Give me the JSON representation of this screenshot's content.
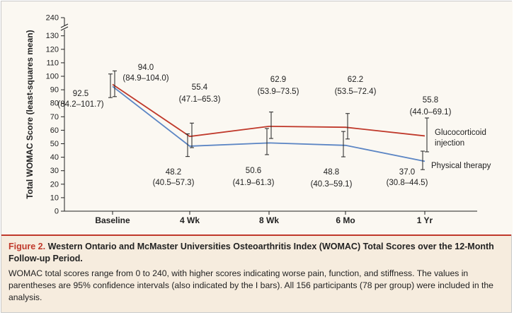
{
  "chart_data": {
    "type": "line",
    "ylabel": "Total WOMAC Score (least-squares mean)",
    "xlabel": "",
    "categories": [
      "Baseline",
      "4 Wk",
      "8 Wk",
      "6 Mo",
      "1 Yr"
    ],
    "y_ticks": [
      0,
      10,
      20,
      30,
      40,
      50,
      60,
      70,
      80,
      90,
      100,
      110,
      120,
      130
    ],
    "y_break_label": 240,
    "ylim": [
      0,
      130
    ],
    "grid": false,
    "series": [
      {
        "name": "Glucocorticoid injection",
        "color": "#c0392b",
        "values": [
          94.0,
          55.4,
          62.9,
          62.2,
          55.8
        ],
        "ci_low": [
          84.9,
          47.1,
          53.9,
          53.5,
          44.0
        ],
        "ci_high": [
          104.0,
          65.3,
          73.5,
          72.4,
          69.1
        ],
        "value_labels": [
          "94.0",
          "55.4",
          "62.9",
          "62.2",
          "55.8"
        ],
        "ci_labels": [
          "(84.9–104.0)",
          "(47.1–65.3)",
          "(53.9–73.5)",
          "(53.5–72.4)",
          "(44.0–69.1)"
        ]
      },
      {
        "name": "Physical therapy",
        "color": "#5b85c4",
        "values": [
          92.5,
          48.2,
          50.6,
          48.8,
          37.0
        ],
        "ci_low": [
          84.2,
          40.5,
          41.9,
          40.3,
          30.8
        ],
        "ci_high": [
          101.7,
          57.3,
          61.3,
          59.1,
          44.5
        ],
        "value_labels": [
          "92.5",
          "48.2",
          "50.6",
          "48.8",
          "37.0"
        ],
        "ci_labels": [
          "(84.2–101.7)",
          "(40.5–57.3)",
          "(41.9–61.3)",
          "(40.3–59.1)",
          "(30.8–44.5)"
        ]
      }
    ],
    "legend": {
      "glucocorticoid_line1": "Glucocorticoid",
      "glucocorticoid_line2": "injection",
      "physical_therapy": "Physical therapy"
    }
  },
  "caption": {
    "figure_label": "Figure 2.",
    "title": "Western Ontario and McMaster Universities Osteoarthritis Index (WOMAC) Total Scores over the 12-Month Follow-up Period.",
    "body": "WOMAC total scores range from 0 to 240, with higher scores indicating worse pain, function, and stiffness. The values in parentheses are 95% confidence intervals (also indicated by the I bars). All 156 participants (78 per group) were included in the analysis."
  }
}
